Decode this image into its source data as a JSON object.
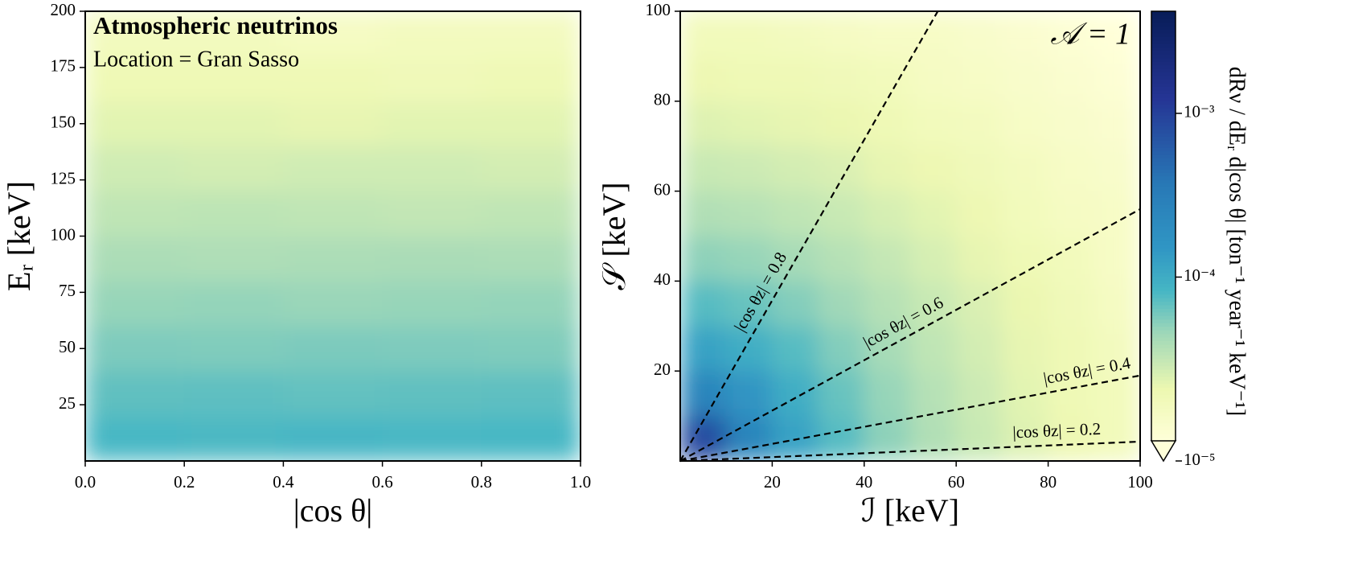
{
  "chart_data": [
    {
      "type": "contour",
      "title": "Atmospheric neutrinos",
      "subtitle": "Location = Gran Sasso",
      "x_label": "|cos θ|",
      "y_label": "Eᵣ [keV]",
      "xlim": [
        0,
        1
      ],
      "xticks": [
        {
          "value": 0,
          "label": "0.0"
        },
        0.2,
        0.4,
        0.6,
        0.8,
        {
          "value": 1,
          "label": "1.0"
        }
      ],
      "ylim": [
        0,
        200
      ],
      "yticks": [
        25,
        50,
        75,
        100,
        125,
        150,
        175,
        200
      ],
      "colormap": "YlGnBu",
      "x": [
        0.1,
        0.3,
        0.5,
        0.7,
        0.9
      ],
      "y": [
        10,
        30,
        50,
        70,
        90,
        110,
        130,
        150,
        170,
        190
      ],
      "z": [
        [
          8.2e-05,
          8e-05,
          8.3e-05,
          8.1e-05,
          8.2e-05
        ],
        [
          6.9e-05,
          7e-05,
          6.8e-05,
          6.9e-05,
          7e-05
        ],
        [
          5.7e-05,
          5.6e-05,
          5.8e-05,
          5.7e-05,
          5.6e-05
        ],
        [
          4.8e-05,
          4.9e-05,
          4.7e-05,
          4.8e-05,
          4.9e-05
        ],
        [
          4e-05,
          3.9e-05,
          4e-05,
          4.1e-05,
          4e-05
        ],
        [
          3.3e-05,
          3.4e-05,
          3.3e-05,
          3.2e-05,
          3.3e-05
        ],
        [
          2.8e-05,
          2.7e-05,
          2.8e-05,
          2.8e-05,
          2.7e-05
        ],
        [
          2.3e-05,
          2.3e-05,
          2.2e-05,
          2.3e-05,
          2.3e-05
        ],
        [
          1.9e-05,
          1.9e-05,
          1.9e-05,
          1.8e-05,
          1.9e-05
        ],
        [
          1.6e-05,
          1.6e-05,
          1.5e-05,
          1.6e-05,
          1.6e-05
        ]
      ]
    },
    {
      "type": "contour",
      "annotation": "𝒜 = 1",
      "x_label": "ℐ [keV]",
      "y_label": "𝒮 [keV]",
      "xlim": [
        0,
        100
      ],
      "xticks": [
        20,
        40,
        60,
        80,
        100
      ],
      "ylim": [
        0,
        100
      ],
      "yticks": [
        20,
        40,
        60,
        80,
        100
      ],
      "colormap": "YlGnBu",
      "x": [
        5,
        15,
        25,
        35,
        45,
        55,
        65,
        75,
        85,
        95
      ],
      "y": [
        5,
        15,
        25,
        35,
        45,
        55,
        65,
        75,
        85,
        95
      ],
      "z": [
        [
          0.00083,
          0.00025,
          0.00012,
          7.4e-05,
          5.1e-05,
          3.8e-05,
          3e-05,
          2.4e-05,
          2e-05,
          1.7e-05
        ],
        [
          0.00025,
          0.00016,
          9.9e-05,
          6.6e-05,
          4.8e-05,
          3.6e-05,
          2.9e-05,
          2.3e-05,
          1.9e-05,
          1.7e-05
        ],
        [
          0.00012,
          9.9e-05,
          7.4e-05,
          5.5e-05,
          4.2e-05,
          3.3e-05,
          2.7e-05,
          2.2e-05,
          1.9e-05,
          1.6e-05
        ],
        [
          7.4e-05,
          6.6e-05,
          5.5e-05,
          4.5e-05,
          3.6e-05,
          3e-05,
          2.5e-05,
          2.1e-05,
          1.8e-05,
          1.5e-05
        ],
        [
          5.1e-05,
          4.8e-05,
          4.2e-05,
          3.6e-05,
          3.1e-05,
          2.6e-05,
          2.2e-05,
          1.9e-05,
          1.7e-05,
          1.4e-05
        ],
        [
          3.8e-05,
          3.6e-05,
          3.3e-05,
          3e-05,
          2.6e-05,
          2.3e-05,
          2e-05,
          1.7e-05,
          1.5e-05,
          1.4e-05
        ],
        [
          3e-05,
          2.9e-05,
          2.7e-05,
          2.5e-05,
          2.2e-05,
          2e-05,
          1.8e-05,
          1.6e-05,
          1.4e-05,
          1.3e-05
        ],
        [
          2.4e-05,
          2.3e-05,
          2.2e-05,
          2.1e-05,
          1.9e-05,
          1.7e-05,
          1.6e-05,
          1.4e-05,
          1.3e-05,
          1.2e-05
        ],
        [
          2e-05,
          1.9e-05,
          1.9e-05,
          1.8e-05,
          1.7e-05,
          1.5e-05,
          1.4e-05,
          1.3e-05,
          1.2e-05,
          1.1e-05
        ],
        [
          1.7e-05,
          1.7e-05,
          1.6e-05,
          1.5e-05,
          1.4e-05,
          1.4e-05,
          1.3e-05,
          1.2e-05,
          1.1e-05,
          1e-05
        ]
      ],
      "lines": [
        {
          "label": "|cos θz| = 0.8",
          "x": [
            0,
            56
          ],
          "y": [
            0,
            100
          ]
        },
        {
          "label": "|cos θz| = 0.6",
          "x": [
            0,
            100
          ],
          "y": [
            0,
            56
          ]
        },
        {
          "label": "|cos θz| = 0.4",
          "x": [
            0,
            100
          ],
          "y": [
            0,
            19
          ]
        },
        {
          "label": "|cos θz| = 0.2",
          "x": [
            0,
            100
          ],
          "y": [
            0,
            4.3
          ]
        }
      ],
      "colorbar": {
        "label": "dRν / dEᵣ d|cos θ|  [ton⁻¹ year⁻¹ keV⁻¹]",
        "log": true,
        "lim": [
          1e-05,
          0.0042
        ],
        "ticks": [
          {
            "value": 1e-05,
            "label": "10⁻⁵"
          },
          {
            "value": 0.0001,
            "label": "10⁻⁴"
          },
          {
            "value": 0.001,
            "label": "10⁻³"
          }
        ]
      }
    }
  ]
}
